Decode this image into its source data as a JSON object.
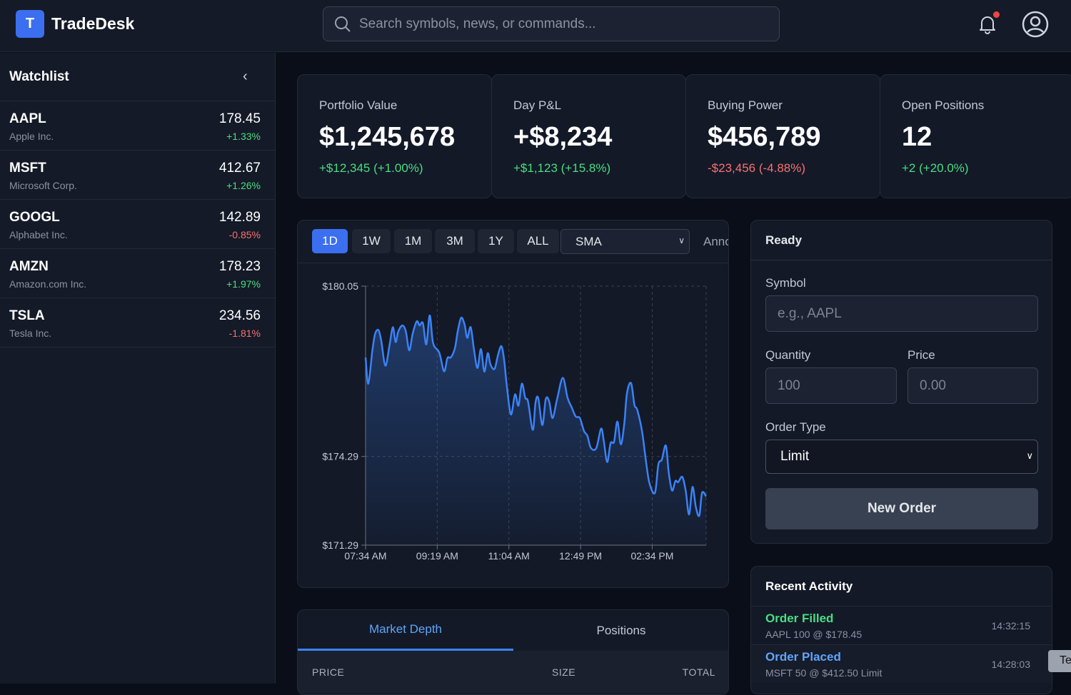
{
  "header": {
    "logo_letter": "T",
    "app_title": "TradeDesk",
    "search_placeholder": "Search symbols, news, or commands...",
    "notification_dot_color": "#ef4444"
  },
  "watchlist": {
    "title": "Watchlist",
    "items": [
      {
        "symbol": "AAPL",
        "name": "Apple Inc.",
        "price": "178.45",
        "change": "+1.33%",
        "dir": "pos"
      },
      {
        "symbol": "MSFT",
        "name": "Microsoft Corp.",
        "price": "412.67",
        "change": "+1.26%",
        "dir": "pos"
      },
      {
        "symbol": "GOOGL",
        "name": "Alphabet Inc.",
        "price": "142.89",
        "change": "-0.85%",
        "dir": "neg"
      },
      {
        "symbol": "AMZN",
        "name": "Amazon.com Inc.",
        "price": "178.23",
        "change": "+1.97%",
        "dir": "pos"
      },
      {
        "symbol": "TSLA",
        "name": "Tesla Inc.",
        "price": "234.56",
        "change": "-1.81%",
        "dir": "neg"
      }
    ]
  },
  "stats": [
    {
      "label": "Portfolio Value",
      "value": "$1,245,678",
      "change": "+$12,345 (+1.00%)",
      "dir": "pos"
    },
    {
      "label": "Day P&L",
      "value": "+$8,234",
      "change": "+$1,123 (+15.8%)",
      "dir": "pos"
    },
    {
      "label": "Buying Power",
      "value": "$456,789",
      "change": "-$23,456 (-4.88%)",
      "dir": "neg"
    },
    {
      "label": "Open Positions",
      "value": "12",
      "change": "+2 (+20.0%)",
      "dir": "pos"
    }
  ],
  "chart_toolbar": {
    "timeframes": [
      "1D",
      "1W",
      "1M",
      "3M",
      "1Y",
      "ALL"
    ],
    "active": "1D",
    "indicator": "SMA",
    "annotations_label": "Annotations"
  },
  "chart_data": {
    "type": "area",
    "line_color": "#3b82f6",
    "grid": true,
    "ylim": [
      171.29,
      180.05
    ],
    "y_ticks": [
      "$180.05",
      "$174.29",
      "$171.29"
    ],
    "y_tick_values": [
      180.05,
      174.29,
      171.29
    ],
    "x_range": [
      "07:34",
      "15:53"
    ],
    "x_ticks": [
      "07:34 AM",
      "09:19 AM",
      "11:04 AM",
      "12:49 PM",
      "02:34 PM"
    ],
    "x_tick_values": [
      "07:34",
      "09:19",
      "11:04",
      "12:49",
      "14:34"
    ],
    "points": [
      [
        "07:34",
        177.64
      ],
      [
        "07:38",
        176.75
      ],
      [
        "07:44",
        177.88
      ],
      [
        "07:48",
        178.44
      ],
      [
        "07:53",
        178.56
      ],
      [
        "07:57",
        178.2
      ],
      [
        "08:03",
        177.36
      ],
      [
        "08:09",
        178.04
      ],
      [
        "08:14",
        178.66
      ],
      [
        "08:18",
        178.16
      ],
      [
        "08:22",
        178.52
      ],
      [
        "08:28",
        178.72
      ],
      [
        "08:33",
        178.52
      ],
      [
        "08:38",
        177.88
      ],
      [
        "08:43",
        178.44
      ],
      [
        "08:49",
        178.86
      ],
      [
        "08:53",
        178.72
      ],
      [
        "08:58",
        178.8
      ],
      [
        "09:03",
        178.08
      ],
      [
        "09:08",
        179.06
      ],
      [
        "09:13",
        178.12
      ],
      [
        "09:22",
        177.8
      ],
      [
        "09:29",
        177.17
      ],
      [
        "09:34",
        177.62
      ],
      [
        "09:39",
        177.64
      ],
      [
        "09:45",
        177.96
      ],
      [
        "09:49",
        178.52
      ],
      [
        "09:54",
        178.98
      ],
      [
        "09:59",
        178.76
      ],
      [
        "10:03",
        178.3
      ],
      [
        "10:08",
        178.66
      ],
      [
        "10:13",
        177.88
      ],
      [
        "10:18",
        177.28
      ],
      [
        "10:23",
        177.92
      ],
      [
        "10:28",
        177.16
      ],
      [
        "10:33",
        177.78
      ],
      [
        "10:37",
        177.4
      ],
      [
        "10:43",
        177.25
      ],
      [
        "10:48",
        177.72
      ],
      [
        "10:53",
        178.02
      ],
      [
        "10:57",
        177.56
      ],
      [
        "11:01",
        176.67
      ],
      [
        "11:07",
        175.71
      ],
      [
        "11:13",
        176.39
      ],
      [
        "11:18",
        176.01
      ],
      [
        "11:23",
        176.75
      ],
      [
        "11:28",
        176.27
      ],
      [
        "11:32",
        176.15
      ],
      [
        "11:39",
        175.19
      ],
      [
        "11:43",
        176.11
      ],
      [
        "11:47",
        176.26
      ],
      [
        "11:53",
        175.35
      ],
      [
        "11:58",
        176.23
      ],
      [
        "12:03",
        176.15
      ],
      [
        "12:08",
        175.59
      ],
      [
        "12:15",
        176.27
      ],
      [
        "12:23",
        176.95
      ],
      [
        "12:30",
        176.27
      ],
      [
        "12:36",
        175.95
      ],
      [
        "12:42",
        175.64
      ],
      [
        "12:48",
        175.59
      ],
      [
        "12:54",
        175.15
      ],
      [
        "12:59",
        174.99
      ],
      [
        "13:04",
        174.58
      ],
      [
        "13:12",
        174.57
      ],
      [
        "13:19",
        175.23
      ],
      [
        "13:23",
        174.82
      ],
      [
        "13:28",
        174.1
      ],
      [
        "13:33",
        174.74
      ],
      [
        "13:38",
        174.78
      ],
      [
        "13:43",
        175.47
      ],
      [
        "13:48",
        174.7
      ],
      [
        "13:53",
        175.39
      ],
      [
        "13:57",
        176.43
      ],
      [
        "14:03",
        176.77
      ],
      [
        "14:08",
        176.03
      ],
      [
        "14:12",
        175.87
      ],
      [
        "14:19",
        175.15
      ],
      [
        "14:25",
        174.1
      ],
      [
        "14:30",
        173.38
      ],
      [
        "14:38",
        173.06
      ],
      [
        "14:43",
        174.02
      ],
      [
        "14:48",
        174.18
      ],
      [
        "14:54",
        174.66
      ],
      [
        "14:58",
        173.78
      ],
      [
        "15:03",
        173.14
      ],
      [
        "15:08",
        173.46
      ],
      [
        "15:12",
        173.42
      ],
      [
        "15:18",
        173.6
      ],
      [
        "15:23",
        173.14
      ],
      [
        "15:28",
        172.33
      ],
      [
        "15:33",
        173.26
      ],
      [
        "15:38",
        172.57
      ],
      [
        "15:43",
        172.29
      ],
      [
        "15:47",
        173.06
      ],
      [
        "15:53",
        172.94
      ]
    ]
  },
  "order": {
    "status": "Ready",
    "symbol_label": "Symbol",
    "symbol_placeholder": "e.g., AAPL",
    "quantity_label": "Quantity",
    "quantity_placeholder": "100",
    "price_label": "Price",
    "price_placeholder": "0.00",
    "order_type_label": "Order Type",
    "order_type_value": "Limit",
    "submit_label": "New Order"
  },
  "activity": {
    "title": "Recent Activity",
    "items": [
      {
        "title": "Order Filled",
        "desc": "AAPL 100 @ $178.45",
        "time": "14:32:15",
        "color": "#4ade80"
      },
      {
        "title": "Order Placed",
        "desc": "MSFT 50 @ $412.50 Limit",
        "time": "14:28:03",
        "color": "#60a5fa"
      }
    ]
  },
  "toast": {
    "text": "Te"
  },
  "depth": {
    "tabs": [
      "Market Depth",
      "Positions"
    ],
    "active": "Market Depth",
    "columns": [
      "PRICE",
      "SIZE",
      "TOTAL"
    ]
  }
}
